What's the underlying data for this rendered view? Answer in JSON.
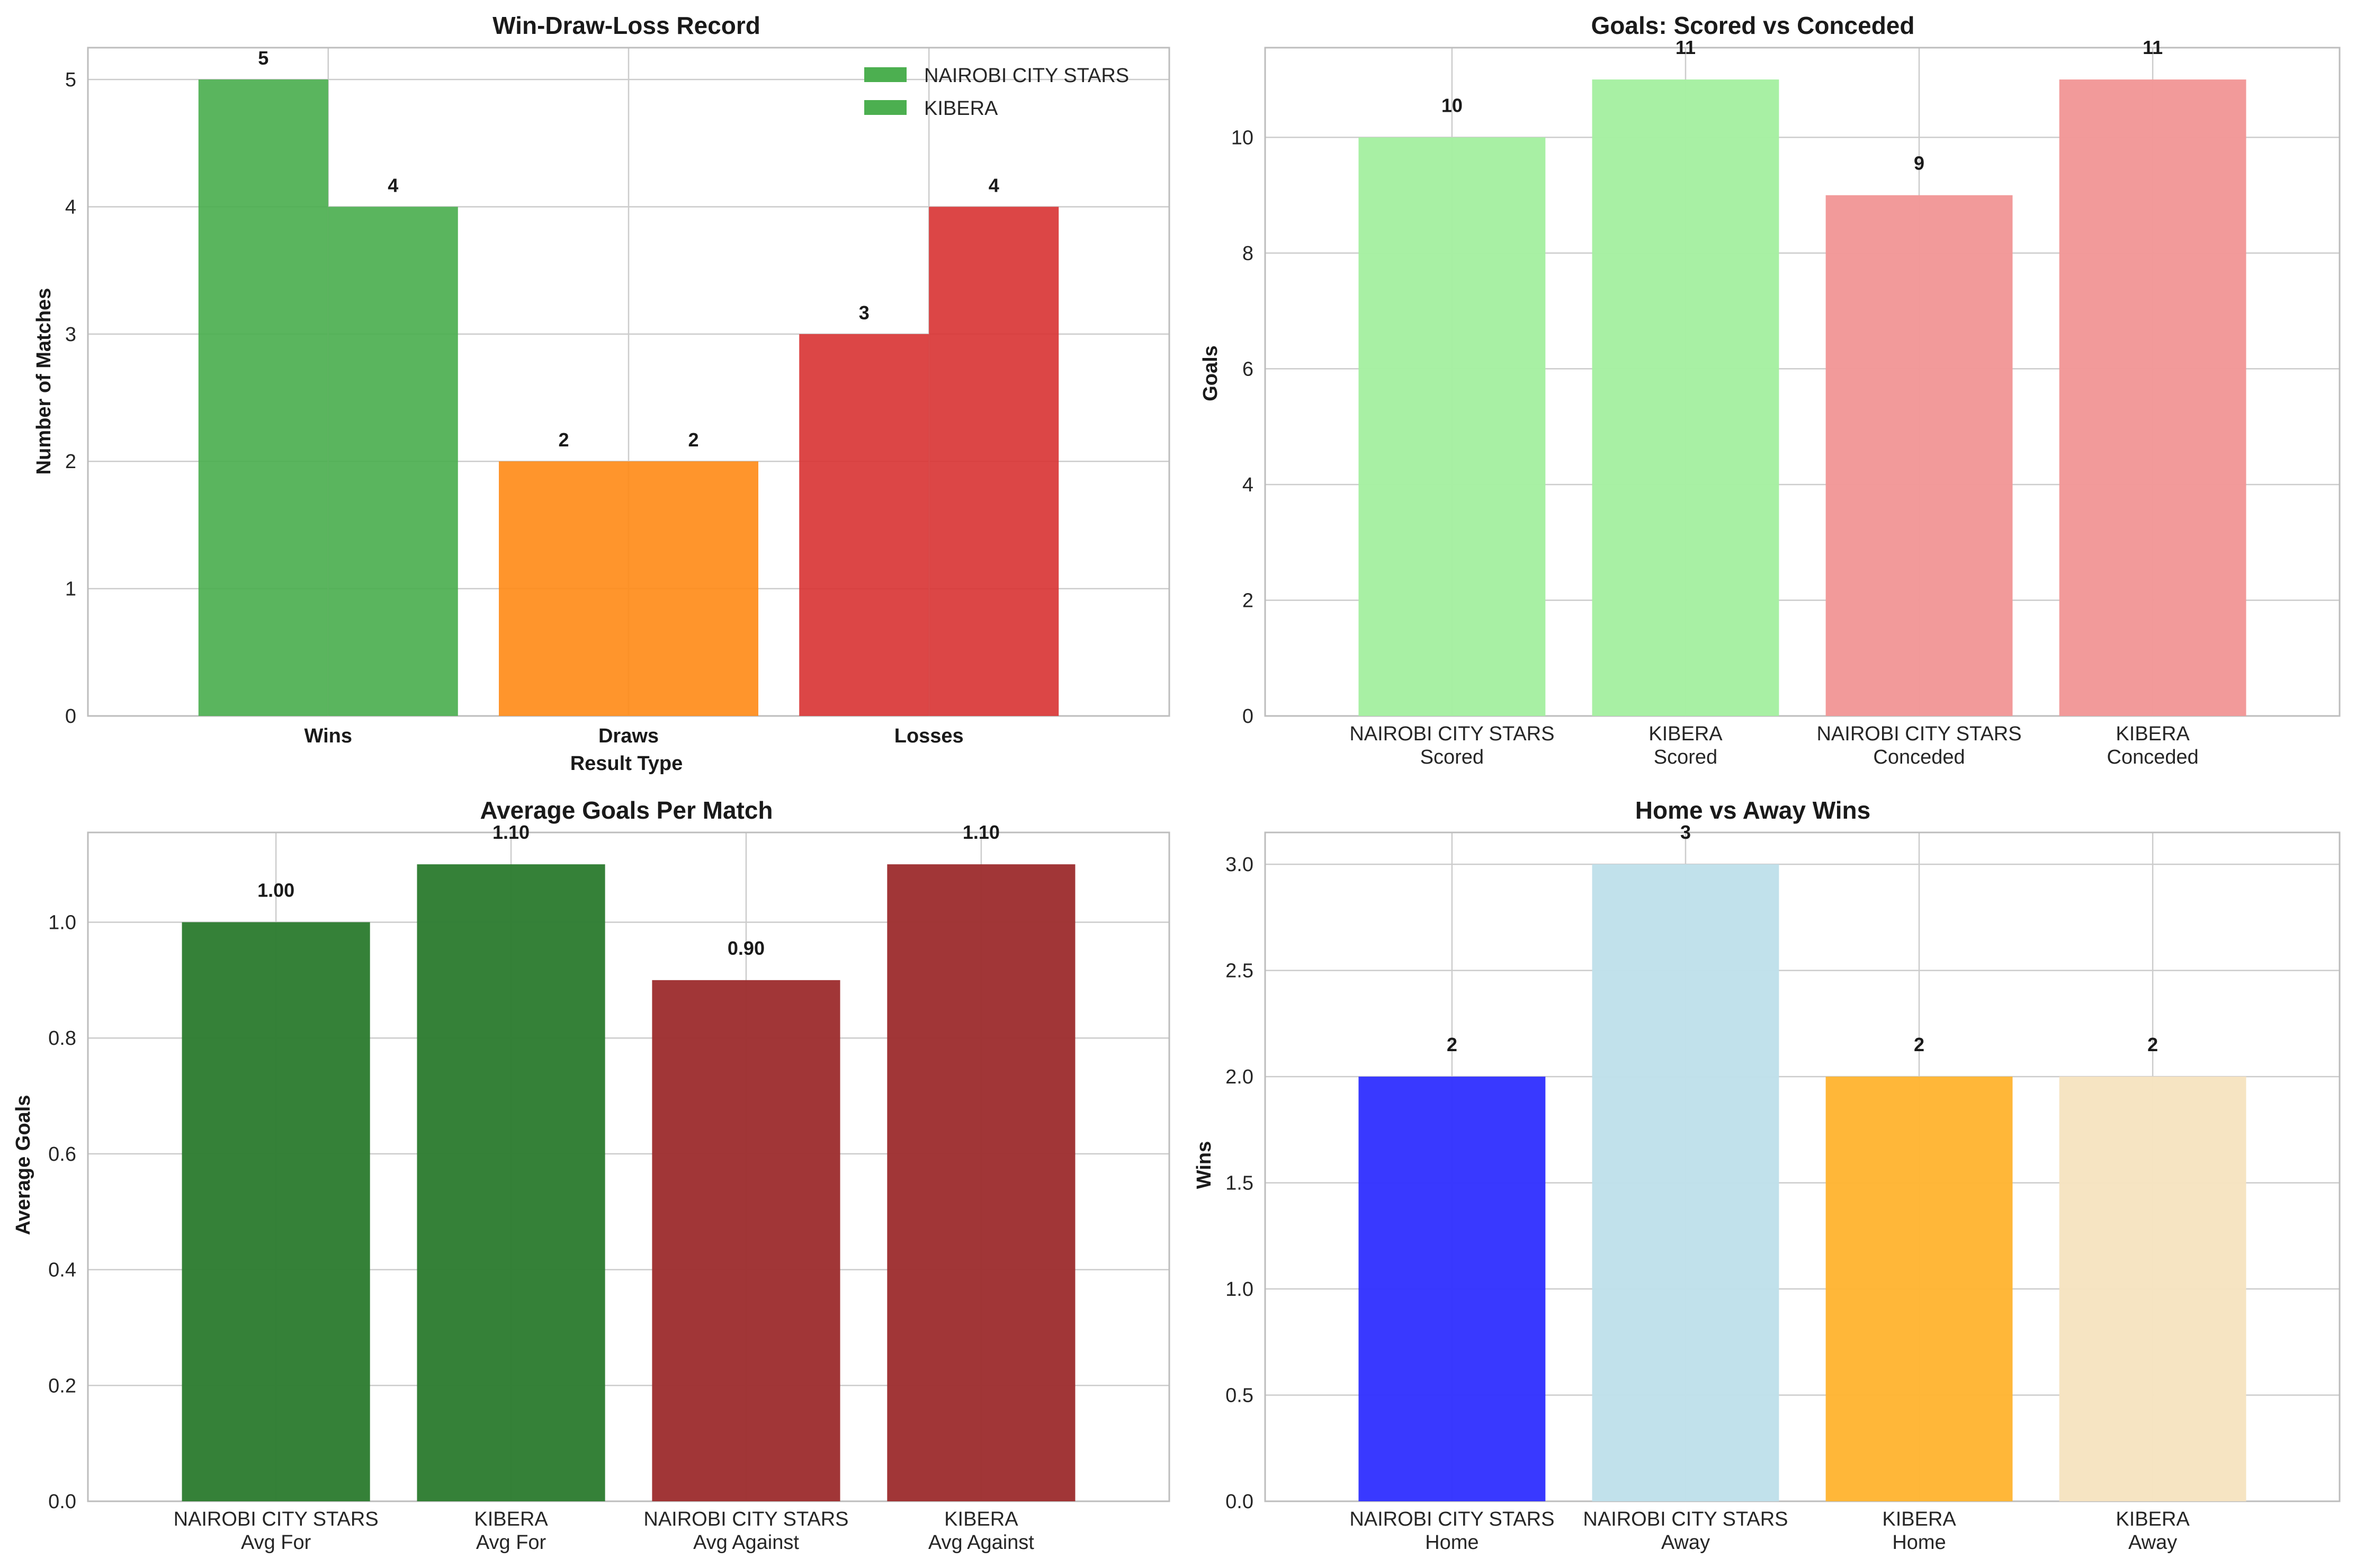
{
  "chart_data": [
    {
      "id": "c1",
      "type": "bar",
      "title": "Win-Draw-Loss Record",
      "xlabel": "Result Type",
      "ylabel": "Number of Matches",
      "categories": [
        "Wins",
        "Draws",
        "Losses"
      ],
      "category_colors": [
        "#4caf50",
        "#ff8c1a",
        "#d93636"
      ],
      "series": [
        {
          "name": "NAIROBI CITY STARS",
          "values": [
            5,
            2,
            3
          ]
        },
        {
          "name": "KIBERA",
          "values": [
            4,
            2,
            4
          ]
        }
      ],
      "data_labels": [
        [
          "5",
          "2",
          "3"
        ],
        [
          "4",
          "2",
          "4"
        ]
      ],
      "legend_color": "#4caf50",
      "yticks": [
        "0",
        "1",
        "2",
        "3",
        "4",
        "5"
      ],
      "ylim": [
        0,
        5.25
      ],
      "legend_position": "top-right",
      "grid": true
    },
    {
      "id": "c2",
      "type": "bar",
      "title": "Goals: Scored vs Conceded",
      "xlabel": "",
      "ylabel": "Goals",
      "categories": [
        [
          "NAIROBI CITY STARS",
          "Scored"
        ],
        [
          "KIBERA",
          "Scored"
        ],
        [
          "NAIROBI CITY STARS",
          "Conceded"
        ],
        [
          "KIBERA",
          "Conceded"
        ]
      ],
      "values": [
        10,
        11,
        9,
        11
      ],
      "data_labels": [
        "10",
        "11",
        "9",
        "11"
      ],
      "colors": [
        "#a5f0a1",
        "#a5f0a1",
        "#f29797",
        "#f29797"
      ],
      "yticks": [
        "0",
        "2",
        "4",
        "6",
        "8",
        "10"
      ],
      "ylim": [
        0,
        11.55
      ],
      "grid": true
    },
    {
      "id": "c3",
      "type": "bar",
      "title": "Average Goals Per Match",
      "xlabel": "",
      "ylabel": "Average Goals",
      "categories": [
        [
          "NAIROBI CITY STARS",
          "Avg For"
        ],
        [
          "KIBERA",
          "Avg For"
        ],
        [
          "NAIROBI CITY STARS",
          "Avg Against"
        ],
        [
          "KIBERA",
          "Avg Against"
        ]
      ],
      "values": [
        1.0,
        1.1,
        0.9,
        1.1
      ],
      "data_labels": [
        "1.00",
        "1.10",
        "0.90",
        "1.10"
      ],
      "colors": [
        "#2e7d32",
        "#2e7d32",
        "#9e3031",
        "#9e3031"
      ],
      "yticks": [
        "0.0",
        "0.2",
        "0.4",
        "0.6",
        "0.8",
        "1.0"
      ],
      "ylim": [
        0,
        1.155
      ],
      "grid": true
    },
    {
      "id": "c4",
      "type": "bar",
      "title": "Home vs Away Wins",
      "xlabel": "",
      "ylabel": "Wins",
      "categories": [
        [
          "NAIROBI CITY STARS",
          "Home"
        ],
        [
          "NAIROBI CITY STARS",
          "Away"
        ],
        [
          "KIBERA",
          "Home"
        ],
        [
          "KIBERA",
          "Away"
        ]
      ],
      "values": [
        2,
        3,
        2,
        2
      ],
      "data_labels": [
        "2",
        "3",
        "2",
        "2"
      ],
      "colors": [
        "#3333ff",
        "#bfe0ea",
        "#ffb533",
        "#f6e3c0"
      ],
      "yticks": [
        "0.0",
        "0.5",
        "1.0",
        "1.5",
        "2.0",
        "2.5",
        "3.0"
      ],
      "ylim": [
        0,
        3.15
      ],
      "grid": true
    }
  ]
}
